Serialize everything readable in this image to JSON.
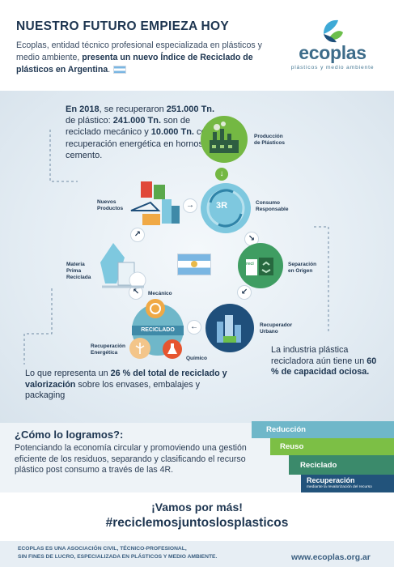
{
  "header": {
    "title": "NUESTRO FUTURO EMPIEZA HOY",
    "intro_part1": "Ecoplas, entidad técnico profesional especializada en plásticos y medio ambiente, ",
    "intro_bold": "presenta un nuevo Índice de Reciclado de plásticos en Argentina",
    "intro_end": "."
  },
  "logo": {
    "name": "ecoplas",
    "tagline": "plásticos y medio ambiente",
    "colors": [
      "#3ea9d6",
      "#6cbf4b",
      "#1d4f7a"
    ]
  },
  "stats": {
    "top": {
      "p1": "En 2018",
      "p2": ", se recuperaron ",
      "p3": "251.000 Tn.",
      "p4": " de plástico: ",
      "p5": "241.000 Tn.",
      "p6": " son de reciclado mecánico y ",
      "p7": "10.000 Tn.",
      "p8": " como recuperación energética en hornos de cemento."
    },
    "right": {
      "p1": "La industria plástica recicladora aún tiene un ",
      "p2": "60 % de capacidad ociosa."
    },
    "left": {
      "p1": "Lo que representa un ",
      "p2": "26 % del total de reciclado y valorización",
      "p3": " sobre los envases, embalajes y packaging"
    }
  },
  "cycle": {
    "produccion_1": "Producción",
    "produccion_2": "de Plásticos",
    "consumo_1": "Consumo",
    "consumo_2": "Responsable",
    "center_3r": "3R",
    "separacion_1": "Separación",
    "separacion_2": "en Origen",
    "recuperador_1": "Recuperador",
    "recuperador_2": "Urbano",
    "reciclado": "RECICLADO",
    "mecanico": "Mecánico",
    "quimico": "Químico",
    "energetica_1": "Recuperación",
    "energetica_2": "Energética",
    "materia_1": "Materia",
    "materia_2": "Prima",
    "materia_3": "Reciclada",
    "nuevos_1": "Nuevos",
    "nuevos_2": "Productos",
    "reci_tag": "reci"
  },
  "how": {
    "title": "¿Cómo lo logramos?:",
    "text": "Potenciando la economía circular y promoviendo una gestión eficiente de los residuos, separando y clasificando el recurso plástico post consumo a través de las 4R."
  },
  "four_r": [
    {
      "label": "Reducción",
      "color": "#6fb7c9"
    },
    {
      "label": "Reuso",
      "color": "#7cbf45"
    },
    {
      "label": "Reciclado",
      "color": "#3b8a6b"
    },
    {
      "label": "Recuperación",
      "sub": "mediante la revalorización del recurso",
      "color": "#22537b"
    }
  ],
  "slogan": {
    "line1": "¡Vamos por más!",
    "line2": "#reciclemosjuntoslosplasticos"
  },
  "footer": {
    "line1": "ECOPLAS ES UNA ASOCIACIÓN CIVIL, TÉCNICO-PROFESIONAL,",
    "line2": "SIN FINES DE LUCRO, ESPECIALIZADA EN PLÁSTICOS Y MEDIO AMBIENTE.",
    "url": "www.ecoplas.org.ar"
  },
  "icons": {
    "arrows": [
      "arrow-down-icon",
      "arrow-right-icon",
      "arrow-down-left-icon",
      "arrow-left-icon",
      "arrow-up-left-icon",
      "arrow-up-right-icon"
    ]
  }
}
